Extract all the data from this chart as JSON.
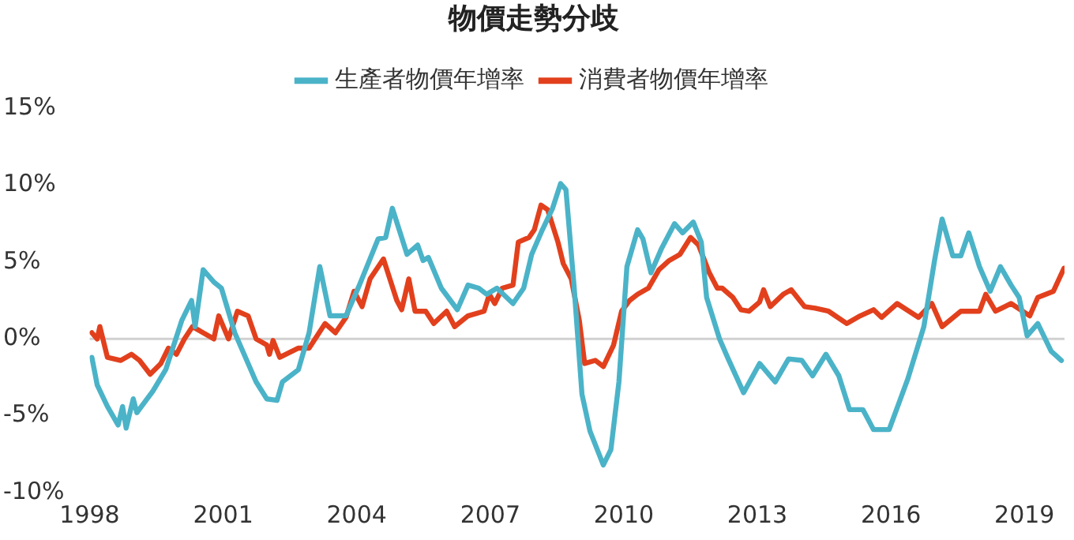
{
  "chart_data": {
    "type": "line",
    "title": "物價走勢分歧",
    "legend": "top",
    "xlim": [
      1998,
      2019.9
    ],
    "xticks": [
      1998,
      2001,
      2004,
      2007,
      2010,
      2013,
      2016,
      2019
    ],
    "ylim": [
      -10,
      15
    ],
    "yticks": [
      {
        "value": -10,
        "label": "-10%"
      },
      {
        "value": -5,
        "label": "-5%"
      },
      {
        "value": 0,
        "label": "0%"
      },
      {
        "value": 5,
        "label": "5%"
      },
      {
        "value": 10,
        "label": "10%"
      },
      {
        "value": 15,
        "label": "15%"
      }
    ],
    "grid": false,
    "marker": "none",
    "line_style": "solid",
    "ref_lines": [
      {
        "axis": "y",
        "value": 0,
        "label": null,
        "color": "#d0d0d0"
      }
    ],
    "series": [
      {
        "name": "生產者物價年增率",
        "color": "#4bb3c8",
        "x": [
          1998.05,
          1998.17,
          1998.4,
          1998.64,
          1998.74,
          1998.82,
          1998.98,
          1999.06,
          1999.42,
          1999.71,
          2000.07,
          2000.29,
          2000.37,
          2000.55,
          2000.79,
          2000.96,
          2001.26,
          2001.74,
          2001.98,
          2002.21,
          2002.33,
          2002.69,
          2002.93,
          2003.17,
          2003.2,
          2003.4,
          2003.76,
          2004.06,
          2004.48,
          2004.65,
          2004.8,
          2005.13,
          2005.37,
          2005.49,
          2005.61,
          2005.9,
          2006.26,
          2006.5,
          2006.74,
          2006.92,
          2007.15,
          2007.51,
          2007.75,
          2007.93,
          2008.17,
          2008.4,
          2008.58,
          2008.7,
          2008.88,
          2009.06,
          2009.24,
          2009.54,
          2009.71,
          2009.89,
          2010.07,
          2010.31,
          2010.43,
          2010.61,
          2010.85,
          2011.14,
          2011.32,
          2011.56,
          2011.74,
          2011.86,
          2012.15,
          2012.33,
          2012.69,
          2013.05,
          2013.4,
          2013.7,
          2014.0,
          2014.24,
          2014.54,
          2014.83,
          2015.07,
          2015.37,
          2015.61,
          2015.96,
          2016.38,
          2016.74,
          2016.98,
          2017.15,
          2017.39,
          2017.57,
          2017.75,
          2017.99,
          2018.23,
          2018.46,
          2018.7,
          2018.88,
          2019.06,
          2019.3,
          2019.6,
          2019.83
        ],
        "values": [
          -1.2,
          -3.0,
          -4.4,
          -5.6,
          -4.4,
          -5.8,
          -3.9,
          -4.8,
          -3.4,
          -2.0,
          1.2,
          2.5,
          0.8,
          4.5,
          3.7,
          3.3,
          0.4,
          -2.8,
          -3.9,
          -4.0,
          -2.8,
          -2.0,
          0.4,
          4.7,
          4.3,
          1.5,
          1.5,
          3.5,
          6.5,
          6.6,
          8.5,
          5.5,
          6.1,
          5.1,
          5.3,
          3.3,
          1.9,
          3.5,
          3.3,
          2.9,
          3.3,
          2.3,
          3.3,
          5.5,
          7.1,
          8.5,
          10.1,
          9.7,
          3.5,
          -3.6,
          -6.0,
          -8.2,
          -7.2,
          -2.8,
          4.7,
          7.1,
          6.5,
          4.3,
          5.9,
          7.5,
          6.9,
          7.6,
          6.3,
          2.7,
          0.0,
          -1.2,
          -3.5,
          -1.6,
          -2.8,
          -1.3,
          -1.4,
          -2.4,
          -1.0,
          -2.4,
          -4.6,
          -4.6,
          -5.9,
          -5.9,
          -2.6,
          0.8,
          5.1,
          7.8,
          5.4,
          5.4,
          6.9,
          4.7,
          3.1,
          4.7,
          3.5,
          2.7,
          0.2,
          1.0,
          -0.8,
          -1.4
        ]
      },
      {
        "name": "消費者物價年增率",
        "color": "#e2401d",
        "x": [
          1998.05,
          1998.17,
          1998.23,
          1998.4,
          1998.7,
          1998.94,
          1999.12,
          1999.36,
          1999.6,
          1999.77,
          1999.95,
          2000.13,
          2000.31,
          2000.55,
          2000.79,
          2000.9,
          2001.12,
          2001.32,
          2001.56,
          2001.74,
          2001.98,
          2002.04,
          2002.12,
          2002.27,
          2002.69,
          2002.93,
          2003.29,
          2003.52,
          2003.76,
          2003.94,
          2004.12,
          2004.3,
          2004.6,
          2004.9,
          2005.01,
          2005.17,
          2005.31,
          2005.55,
          2005.73,
          2006.02,
          2006.2,
          2006.5,
          2006.86,
          2006.98,
          2007.1,
          2007.27,
          2007.51,
          2007.63,
          2007.87,
          2007.99,
          2008.14,
          2008.29,
          2008.52,
          2008.64,
          2008.82,
          2009.0,
          2009.12,
          2009.36,
          2009.54,
          2009.77,
          2009.95,
          2010.13,
          2010.31,
          2010.55,
          2010.79,
          2011.02,
          2011.26,
          2011.5,
          2011.68,
          2011.92,
          2012.1,
          2012.21,
          2012.45,
          2012.63,
          2012.81,
          2013.05,
          2013.14,
          2013.29,
          2013.58,
          2013.76,
          2014.06,
          2014.3,
          2014.6,
          2015.01,
          2015.31,
          2015.61,
          2015.79,
          2016.14,
          2016.62,
          2016.92,
          2017.15,
          2017.57,
          2017.99,
          2018.13,
          2018.35,
          2018.7,
          2019.12,
          2019.3,
          2019.65,
          2019.89
        ],
        "values": [
          0.4,
          0.0,
          0.8,
          -1.2,
          -1.4,
          -1.0,
          -1.4,
          -2.3,
          -1.6,
          -0.6,
          -1.0,
          0.0,
          0.8,
          0.4,
          0.0,
          1.5,
          0.0,
          1.8,
          1.5,
          0.0,
          -0.4,
          -1.0,
          -0.1,
          -1.2,
          -0.6,
          -0.6,
          1.0,
          0.4,
          1.4,
          3.1,
          2.1,
          3.9,
          5.2,
          2.5,
          1.9,
          3.9,
          1.8,
          1.8,
          1.0,
          1.8,
          0.8,
          1.5,
          1.8,
          2.9,
          2.3,
          3.3,
          3.5,
          6.3,
          6.6,
          7.1,
          8.7,
          8.4,
          6.3,
          4.9,
          3.9,
          1.2,
          -1.6,
          -1.4,
          -1.8,
          -0.4,
          1.8,
          2.5,
          2.9,
          3.3,
          4.5,
          5.1,
          5.5,
          6.6,
          6.1,
          4.3,
          3.3,
          3.3,
          2.7,
          1.9,
          1.8,
          2.4,
          3.2,
          2.1,
          2.9,
          3.2,
          2.1,
          2.0,
          1.8,
          1.0,
          1.5,
          1.9,
          1.4,
          2.3,
          1.4,
          2.3,
          0.8,
          1.8,
          1.8,
          2.9,
          1.8,
          2.3,
          1.5,
          2.7,
          3.1,
          4.6
        ]
      }
    ]
  }
}
